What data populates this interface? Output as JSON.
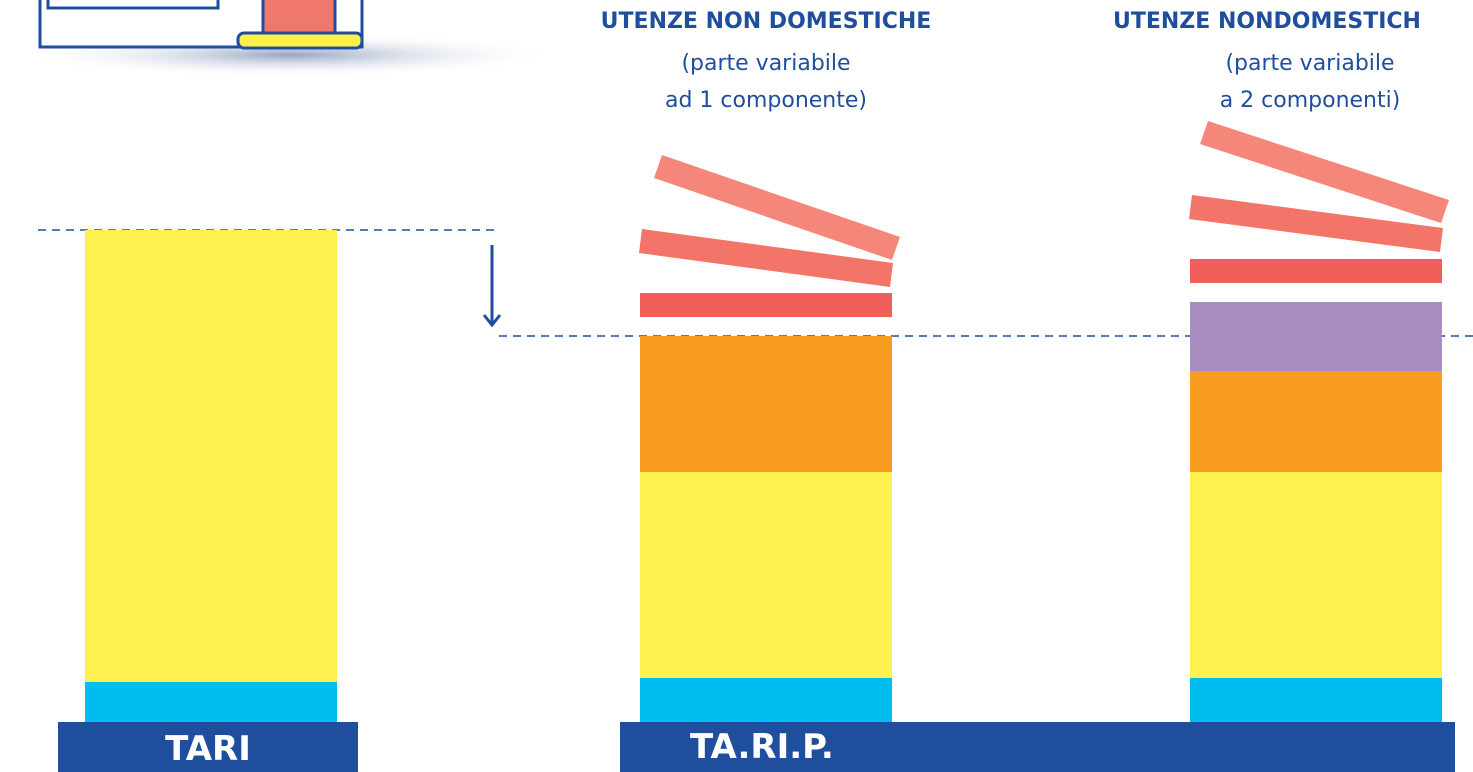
{
  "columns": [
    {
      "title": "UTENZE NON DOMESTICHE",
      "subtitle": [
        "(parte variabile",
        "ad 1 componente)"
      ]
    },
    {
      "title": "UTENZE NONDOMESTICH",
      "subtitle": [
        "(parte variabile",
        "a 2 componenti)"
      ]
    }
  ],
  "bases": [
    "TARI",
    "TA.RI.P."
  ]
}
